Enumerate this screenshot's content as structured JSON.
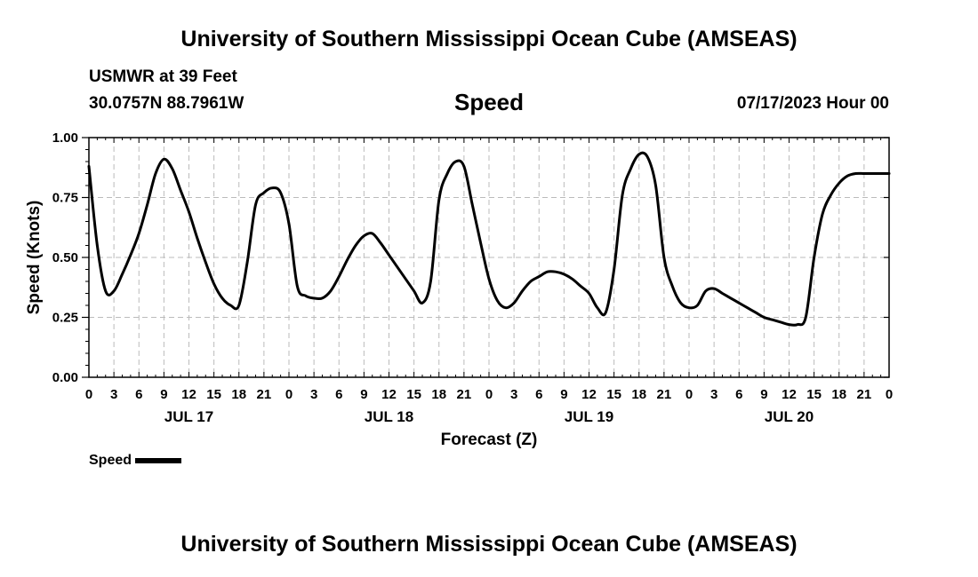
{
  "header": {
    "title": "University of Southern Mississippi Ocean Cube (AMSEAS)",
    "station": "USMWR at 39 Feet",
    "coords": "30.0757N  88.7961W",
    "datetime": "07/17/2023 Hour 00"
  },
  "footer": {
    "title": "University of Southern Mississippi Ocean Cube (AMSEAS)"
  },
  "legend": {
    "label": "Speed"
  },
  "colors": {
    "line": "#000000",
    "grid": "#bbbbbb"
  },
  "chart_data": {
    "type": "line",
    "title": "Speed",
    "xlabel": "Forecast (Z)",
    "ylabel": "Speed (Knots)",
    "xlim": [
      0,
      96
    ],
    "ylim": [
      0,
      1
    ],
    "grid": true,
    "yticks": [
      0,
      0.25,
      0.5,
      0.75,
      1.0
    ],
    "ytick_labels": [
      "0.00",
      "0.25",
      "0.50",
      "0.75",
      "1.00"
    ],
    "xticks": [
      0,
      3,
      6,
      9,
      12,
      15,
      18,
      21,
      24,
      27,
      30,
      33,
      36,
      39,
      42,
      45,
      48,
      51,
      54,
      57,
      60,
      63,
      66,
      69,
      72,
      75,
      78,
      81,
      84,
      87,
      90,
      93,
      96
    ],
    "xtick_labels": [
      "0",
      "3",
      "6",
      "9",
      "12",
      "15",
      "18",
      "21",
      "0",
      "3",
      "6",
      "9",
      "12",
      "15",
      "18",
      "21",
      "0",
      "3",
      "6",
      "9",
      "12",
      "15",
      "18",
      "21",
      "0",
      "3",
      "6",
      "9",
      "12",
      "15",
      "18",
      "21",
      "0"
    ],
    "day_labels": [
      {
        "label": "JUL 17",
        "hour": 12
      },
      {
        "label": "JUL 18",
        "hour": 36
      },
      {
        "label": "JUL 19",
        "hour": 60
      },
      {
        "label": "JUL 20",
        "hour": 84
      }
    ],
    "legend_position": "bottom-left",
    "series": [
      {
        "name": "Speed",
        "x": [
          0,
          1,
          2,
          3,
          4,
          5,
          6,
          7,
          8,
          9,
          10,
          11,
          12,
          13,
          14,
          15,
          16,
          17,
          18,
          19,
          20,
          21,
          22,
          23,
          24,
          25,
          26,
          27,
          28,
          29,
          30,
          31,
          32,
          33,
          34,
          35,
          36,
          37,
          38,
          39,
          40,
          41,
          42,
          43,
          44,
          45,
          46,
          47,
          48,
          49,
          50,
          51,
          52,
          53,
          54,
          55,
          56,
          57,
          58,
          59,
          60,
          61,
          62,
          63,
          64,
          65,
          66,
          67,
          68,
          69,
          70,
          71,
          72,
          73,
          74,
          75,
          76,
          77,
          78,
          79,
          80,
          81,
          82,
          83,
          84,
          85,
          86,
          87,
          88,
          89,
          90,
          91,
          92,
          93,
          94,
          95,
          96
        ],
        "values": [
          0.88,
          0.55,
          0.36,
          0.36,
          0.43,
          0.51,
          0.6,
          0.72,
          0.85,
          0.91,
          0.87,
          0.78,
          0.69,
          0.58,
          0.48,
          0.39,
          0.33,
          0.3,
          0.3,
          0.48,
          0.72,
          0.77,
          0.79,
          0.77,
          0.64,
          0.38,
          0.34,
          0.33,
          0.33,
          0.36,
          0.42,
          0.49,
          0.55,
          0.59,
          0.6,
          0.56,
          0.51,
          0.46,
          0.41,
          0.36,
          0.31,
          0.4,
          0.74,
          0.85,
          0.9,
          0.88,
          0.72,
          0.56,
          0.41,
          0.32,
          0.29,
          0.31,
          0.36,
          0.4,
          0.42,
          0.44,
          0.44,
          0.43,
          0.41,
          0.38,
          0.35,
          0.29,
          0.27,
          0.45,
          0.76,
          0.87,
          0.93,
          0.92,
          0.8,
          0.5,
          0.38,
          0.31,
          0.29,
          0.3,
          0.36,
          0.37,
          0.35,
          0.33,
          0.31,
          0.29,
          0.27,
          0.25,
          0.24,
          0.23,
          0.22,
          0.22,
          0.25,
          0.5,
          0.68,
          0.76,
          0.81,
          0.84,
          0.85,
          0.85,
          0.85,
          0.85,
          0.85
        ]
      }
    ]
  }
}
